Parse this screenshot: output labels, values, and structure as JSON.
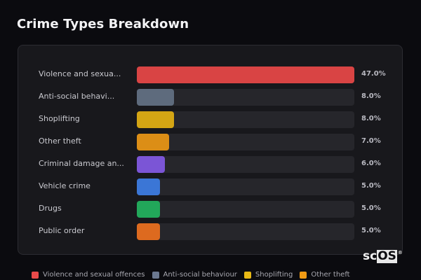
{
  "header": {
    "title": "Crime Types Breakdown"
  },
  "chart_data": {
    "type": "bar",
    "orientation": "horizontal",
    "title": "Crime Types Breakdown",
    "categories": [
      "Violence and sexual offences",
      "Anti-social behaviour",
      "Shoplifting",
      "Other theft",
      "Criminal damage and arson",
      "Vehicle crime",
      "Drugs",
      "Public order"
    ],
    "display_labels": [
      "Violence and sexua...",
      "Anti-social behavi...",
      "Shoplifting",
      "Other theft",
      "Criminal damage an...",
      "Vehicle crime",
      "Drugs",
      "Public order"
    ],
    "values": [
      47.0,
      8.0,
      8.0,
      7.0,
      6.0,
      5.0,
      5.0,
      5.0
    ],
    "value_labels": [
      "47.0%",
      "8.0%",
      "8.0%",
      "7.0%",
      "6.0%",
      "5.0%",
      "5.0%",
      "5.0%"
    ],
    "colors": [
      "#d94444",
      "#5e6b7d",
      "#d4a514",
      "#dc8e16",
      "#7b55d6",
      "#3b76d6",
      "#22a75a",
      "#dd6a1f"
    ],
    "unit": "%",
    "xlim": [
      0,
      47
    ],
    "grid": false,
    "legend_position": "bottom"
  },
  "legend": {
    "items": [
      {
        "label": "Violence and sexual offences",
        "color": "#e94a4a"
      },
      {
        "label": "Anti-social behaviour",
        "color": "#6b7890"
      },
      {
        "label": "Shoplifting",
        "color": "#e8b915"
      },
      {
        "label": "Other theft",
        "color": "#f09a14"
      }
    ]
  },
  "watermark": {
    "sc": "sc",
    "os": "OS",
    "reg": "®"
  }
}
